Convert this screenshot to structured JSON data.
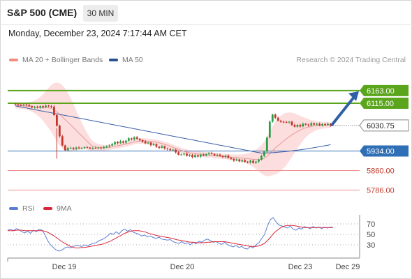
{
  "header": {
    "title": "S&P 500 (CME)",
    "timeframe": "30 MIN",
    "datetime": "Monday, December 23, 2024 7:17:44 AM CET"
  },
  "legend": {
    "ma20_label": "MA 20 + Bollinger Bands",
    "ma50_label": "MA 50",
    "credit": "Research © 2024 Trading Central",
    "rsi_label": "RSI",
    "ma9_label": "9MA"
  },
  "colors": {
    "up_candle": "#2e9d4a",
    "down_candle": "#c2362c",
    "bollinger_fill": "#fdd8d8",
    "ma20": "#e59a9a",
    "ma50": "#3a5fa8",
    "resistance": "#5aa51b",
    "pivot_line": "#2f6fb5",
    "support": "#f08c8c",
    "rsi": "#5b7fd6",
    "rsi_ma9": "#d9263a",
    "arrow": "#2f5fa6"
  },
  "chart_data": [
    {
      "type": "candlestick",
      "title": "S&P 500 (CME)",
      "timeframe": "30 MIN",
      "x_tick_labels": [
        "Dec 19",
        "Dec 20",
        "Dec 23",
        "Dec 29"
      ],
      "ylim": [
        5770,
        6185
      ],
      "levels": [
        {
          "value": 6163.0,
          "label": "6163.00",
          "kind": "resistance"
        },
        {
          "value": 6115.0,
          "label": "6115.00",
          "kind": "resistance"
        },
        {
          "value": 6030.75,
          "label": "6030.75",
          "kind": "last-price"
        },
        {
          "value": 5934.0,
          "label": "5934.00",
          "kind": "pivot"
        },
        {
          "value": 5860.0,
          "label": "5860.00",
          "kind": "support"
        },
        {
          "value": 5786.0,
          "label": "5786.00",
          "kind": "support"
        }
      ],
      "projection": {
        "from": 6030.75,
        "to": 6163.0,
        "direction": "up"
      },
      "close": [
        6111,
        6109,
        6107,
        6110,
        6108,
        6104,
        6099,
        6101,
        6098,
        6104,
        6100,
        6106,
        6104,
        6102,
        6070,
        6030,
        5990,
        5955,
        5937,
        5945,
        5946,
        5942,
        5947,
        5944,
        5946,
        5948,
        5947,
        5944,
        5946,
        5945,
        5947,
        5945,
        5949,
        5952,
        5955,
        5960,
        5968,
        5964,
        5971,
        5966,
        5973,
        5982,
        5978,
        5986,
        5980,
        5975,
        5970,
        5963,
        5966,
        5956,
        5960,
        5950,
        5946,
        5952,
        5943,
        5941,
        5937,
        5939,
        5929,
        5920,
        5921,
        5924,
        5916,
        5919,
        5911,
        5918,
        5913,
        5920,
        5917,
        5922,
        5926,
        5923,
        5918,
        5920,
        5915,
        5911,
        5916,
        5908,
        5904,
        5898,
        5902,
        5895,
        5899,
        5893,
        5891,
        5897,
        5889,
        5894,
        5901,
        5915,
        5932,
        5985,
        6045,
        6072,
        6060,
        6049,
        6045,
        6044,
        6042,
        6045,
        6033,
        6026,
        6033,
        6027,
        6037,
        6034,
        6031,
        6039,
        6034,
        6037,
        6031,
        6036,
        6033,
        6037,
        6030
      ],
      "ma20": [
        6106,
        6105,
        6105,
        6105,
        6104,
        6103,
        6102,
        6101,
        6100,
        6099,
        6099,
        6098,
        6097,
        6096,
        6090,
        6082,
        6073,
        6063,
        6053,
        6043,
        6033,
        6022,
        6012,
        6001,
        5991,
        5981,
        5970,
        5960,
        5952,
        5949,
        5947,
        5946,
        5946,
        5947,
        5948,
        5950,
        5952,
        5954,
        5956,
        5958,
        5961,
        5963,
        5966,
        5969,
        5971,
        5972,
        5972,
        5972,
        5971,
        5970,
        5969,
        5967,
        5965,
        5962,
        5959,
        5956,
        5952,
        5948,
        5944,
        5940,
        5936,
        5933,
        5930,
        5927,
        5925,
        5924,
        5923,
        5922,
        5921,
        5920,
        5919,
        5918,
        5917,
        5916,
        5915,
        5914,
        5913,
        5912,
        5911,
        5910,
        5909,
        5908,
        5907,
        5906,
        5905,
        5904,
        5903,
        5902,
        5902,
        5903,
        5906,
        5913,
        5923,
        5935,
        5945,
        5954,
        5963,
        5972,
        5980,
        5988,
        5995,
        6002,
        6008,
        6013,
        6018,
        6022,
        6025,
        6027,
        6029,
        6030,
        6031,
        6031,
        6032,
        6032,
        6032
      ],
      "ma50_start": 6105,
      "ma50_end": 5958,
      "bollinger_upper_peak": 6178,
      "bollinger_lower_trough": 5852
    },
    {
      "type": "line",
      "title": "RSI",
      "series": [
        {
          "name": "RSI",
          "values": [
            58,
            60,
            57,
            61,
            59,
            55,
            53,
            56,
            52,
            58,
            55,
            60,
            58,
            50,
            38,
            30,
            25,
            20,
            18,
            20,
            24,
            26,
            24,
            27,
            29,
            28,
            27,
            30,
            28,
            31,
            33,
            34,
            38,
            40,
            43,
            47,
            52,
            50,
            55,
            51,
            57,
            60,
            56,
            59,
            54,
            52,
            50,
            47,
            49,
            45,
            47,
            44,
            42,
            45,
            41,
            40,
            39,
            40,
            36,
            34,
            33,
            36,
            32,
            34,
            30,
            35,
            32,
            37,
            35,
            39,
            41,
            38,
            35,
            36,
            33,
            31,
            35,
            30,
            28,
            26,
            29,
            25,
            27,
            23,
            22,
            27,
            24,
            30,
            34,
            42,
            50,
            66,
            78,
            82,
            74,
            68,
            66,
            64,
            62,
            66,
            60,
            58,
            62,
            60,
            65,
            63,
            61,
            65,
            62,
            64,
            61,
            64,
            62,
            64,
            63
          ]
        },
        {
          "name": "9MA",
          "values": [
            57,
            57,
            57,
            58,
            58,
            58,
            57,
            57,
            57,
            57,
            57,
            57,
            57,
            56,
            54,
            51,
            48,
            44,
            40,
            36,
            33,
            30,
            27,
            25,
            24,
            24,
            25,
            25,
            26,
            27,
            28,
            29,
            30,
            31,
            33,
            35,
            37,
            40,
            43,
            46,
            49,
            52,
            54,
            56,
            57,
            57,
            57,
            56,
            55,
            53,
            51,
            50,
            48,
            47,
            46,
            45,
            44,
            43,
            42,
            40,
            39,
            38,
            37,
            36,
            35,
            35,
            34,
            34,
            34,
            34,
            35,
            35,
            36,
            36,
            36,
            36,
            36,
            35,
            34,
            33,
            32,
            31,
            30,
            29,
            28,
            27,
            27,
            27,
            28,
            30,
            33,
            38,
            44,
            51,
            56,
            60,
            64,
            66,
            67,
            67,
            67,
            66,
            65,
            64,
            63,
            63,
            63,
            63,
            63,
            63,
            63,
            63,
            63,
            63,
            63
          ]
        }
      ],
      "levels": [
        70,
        50,
        30
      ],
      "ylim": [
        0,
        100
      ]
    }
  ]
}
